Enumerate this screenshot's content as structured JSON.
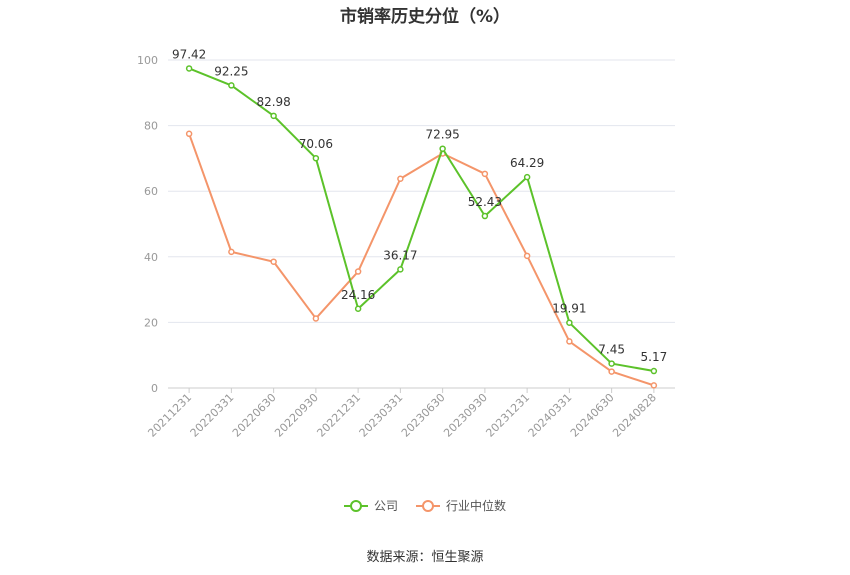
{
  "chart_data": {
    "type": "line",
    "title": "市销率历史分位（%）",
    "categories": [
      "20211231",
      "20220331",
      "20220630",
      "20220930",
      "20221231",
      "20230331",
      "20230630",
      "20230930",
      "20231231",
      "20240331",
      "20240630",
      "20240828"
    ],
    "ylim": [
      0,
      100
    ],
    "yticks": [
      0,
      20,
      40,
      60,
      80,
      100
    ],
    "grid": true,
    "legend_position": "bottom",
    "series": [
      {
        "name": "公司",
        "color": "#5cc22a",
        "values": [
          97.42,
          92.25,
          82.98,
          70.06,
          24.16,
          36.17,
          72.95,
          52.43,
          64.29,
          19.91,
          7.45,
          5.17
        ],
        "labels": [
          "97.42",
          "92.25",
          "82.98",
          "70.06",
          "24.16",
          "36.17",
          "72.95",
          "52.43",
          "64.29",
          "19.91",
          "7.45",
          "5.17"
        ]
      },
      {
        "name": "行业中位数",
        "color": "#f4956a",
        "values": [
          77.5,
          41.5,
          38.5,
          21.2,
          35.5,
          63.8,
          71.5,
          65.3,
          40.3,
          14.2,
          5.0,
          0.8
        ]
      }
    ]
  },
  "source": "数据来源：恒生聚源"
}
